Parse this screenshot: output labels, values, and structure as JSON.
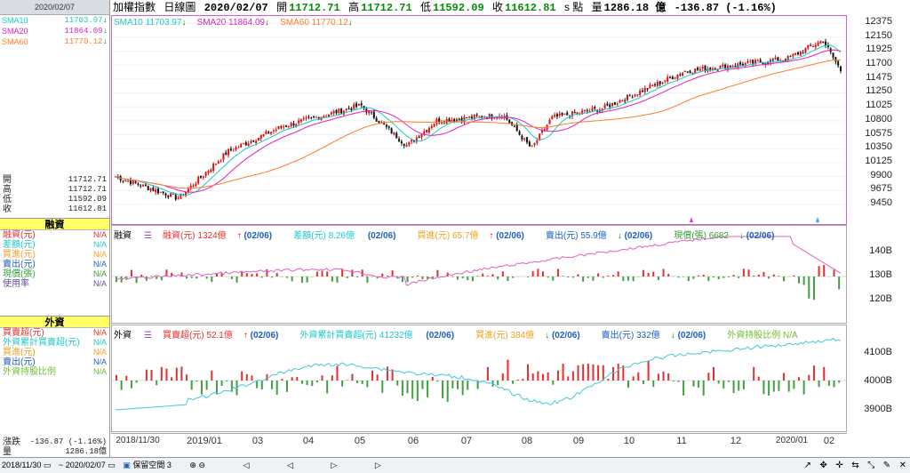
{
  "sidebar": {
    "date": "2020/02/07",
    "sma": [
      {
        "label": "SMA10",
        "value": "11703.97",
        "color": "#1ec8c8",
        "dir": "down"
      },
      {
        "label": "SMA20",
        "value": "11864.09",
        "color": "#e020c0",
        "dir": "down"
      },
      {
        "label": "SMA60",
        "value": "11770.12",
        "color": "#ff7d2a",
        "dir": "down"
      }
    ],
    "ohlc": [
      {
        "label": "開",
        "value": "11712.71"
      },
      {
        "label": "高",
        "value": "11712.71"
      },
      {
        "label": "低",
        "value": "11592.09"
      },
      {
        "label": "收",
        "value": "11612.81"
      }
    ],
    "margin_title": "融資",
    "margin_items": [
      {
        "label": "融資(元)",
        "value": "N/A",
        "color": "#e03030"
      },
      {
        "label": "差額(元)",
        "value": "N/A",
        "color": "#1ec8c8"
      },
      {
        "label": "買進(元)",
        "value": "N/A",
        "color": "#f0a020"
      },
      {
        "label": "賣出(元)",
        "value": "N/A",
        "color": "#2060c0"
      },
      {
        "label": "現償(張)",
        "value": "N/A",
        "color": "#30a030"
      },
      {
        "label": "使用率",
        "value": "N/A",
        "color": "#6050a0"
      }
    ],
    "foreign_title": "外資",
    "foreign_items": [
      {
        "label": "買賣超(元)",
        "value": "N/A",
        "color": "#e03030"
      },
      {
        "label": "外資累計買賣超(元)",
        "value": "N/A",
        "color": "#1ec8c8"
      },
      {
        "label": "買進(元)",
        "value": "N/A",
        "color": "#f0a020"
      },
      {
        "label": "賣出(元)",
        "value": "N/A",
        "color": "#2060c0"
      },
      {
        "label": "外資持股比例",
        "value": "N/A",
        "color": "#70c030"
      }
    ],
    "change": {
      "label": "漲跌",
      "value": "-136.87 (-1.16%)"
    },
    "volume": {
      "label": "量",
      "value": "1286.18億"
    }
  },
  "topbar": {
    "name": "加權指數",
    "period": "日線圖",
    "date": "2020/02/07",
    "open_label": "開",
    "open": "11712.71",
    "high_label": "高",
    "high": "11712.71",
    "low_label": "低",
    "low": "11592.09",
    "close_label": "收",
    "close": "11612.81",
    "unit": "s 點",
    "vol_label": "量",
    "vol": "1286.18 億",
    "change": "-136.87 (-1.16%)"
  },
  "price_panel": {
    "legend": [
      {
        "text": "SMA10 11703.97",
        "color": "#1ec8c8"
      },
      {
        "text": "SMA20 11864.09",
        "color": "#e020c0"
      },
      {
        "text": "SMA60 11770.12",
        "color": "#ff7d2a"
      }
    ],
    "y_ticks": [
      "12375",
      "12150",
      "11925",
      "11700",
      "11475",
      "11250",
      "11025",
      "10800",
      "10575",
      "10350",
      "10125",
      "9900",
      "9675",
      "9450"
    ]
  },
  "margin_panel": {
    "title": "融資",
    "legend": [
      {
        "text": "融資(元) 1324億",
        "date": "(02/06)",
        "color": "#e03030",
        "dir": "up"
      },
      {
        "text": "差額(元) 8.26億",
        "date": "(02/06)",
        "color": "#1ec8c8",
        "dir": "none"
      },
      {
        "text": "買進(元) 65.7億",
        "date": "(02/06)",
        "color": "#f0a020",
        "dir": "up"
      },
      {
        "text": "賣出(元) 55.9億",
        "date": "(02/06)",
        "color": "#2060c0",
        "dir": "down"
      },
      {
        "text": "現償(張) 6682",
        "date": "(02/06)",
        "color": "#30a030",
        "dir": "down"
      }
    ],
    "y_ticks": [
      "140B",
      "130B",
      "120B"
    ]
  },
  "foreign_panel": {
    "title": "外資",
    "legend": [
      {
        "text": "買賣超(元) 52.1億",
        "date": "(02/06)",
        "color": "#e03030",
        "dir": "up"
      },
      {
        "text": "外資累計買賣超(元) 41232億",
        "date": "(02/06)",
        "color": "#1ec8c8",
        "dir": "none"
      },
      {
        "text": "買進(元) 384億",
        "date": "(02/06)",
        "color": "#f0a020",
        "dir": "down"
      },
      {
        "text": "賣出(元) 332億",
        "date": "(02/06)",
        "color": "#2060c0",
        "dir": "down"
      },
      {
        "text": "外資持股比例 N/A",
        "date": "",
        "color": "#70c030",
        "dir": "none"
      }
    ],
    "y_ticks": [
      "4100B",
      "4000B",
      "3900B"
    ]
  },
  "x_axis": [
    "2018/11/30",
    "2019/01",
    "03",
    "04",
    "05",
    "06",
    "07",
    "08",
    "09",
    "10",
    "11",
    "12",
    "2020/01",
    "02"
  ],
  "bottom": {
    "start": "2018/11/30",
    "end": "2020/02/07",
    "keep_label": "保留空間",
    "keep_value": "3"
  },
  "chart_data": {
    "type": "candlestick",
    "title": "加權指數 日線圖",
    "ylim": [
      9300,
      12500
    ],
    "series": [
      {
        "name": "SMA10",
        "last": 11703.97
      },
      {
        "name": "SMA20",
        "last": 11864.09
      },
      {
        "name": "SMA60",
        "last": 11770.12
      }
    ],
    "close_path": [
      {
        "x": "2018/11/30",
        "y": 9900
      },
      {
        "x": "2019/01",
        "y": 9550
      },
      {
        "x": "03",
        "y": 10300
      },
      {
        "x": "04",
        "y": 10700
      },
      {
        "x": "05",
        "y": 11050
      },
      {
        "x": "06",
        "y": 10400
      },
      {
        "x": "07",
        "y": 10800
      },
      {
        "x": "08",
        "y": 10900
      },
      {
        "x": "08",
        "y": 10350
      },
      {
        "x": "09",
        "y": 10850
      },
      {
        "x": "10",
        "y": 11000
      },
      {
        "x": "11",
        "y": 11600
      },
      {
        "x": "12",
        "y": 11800
      },
      {
        "x": "2020/01",
        "y": 12100
      },
      {
        "x": "02",
        "y": 11612.81
      }
    ]
  }
}
